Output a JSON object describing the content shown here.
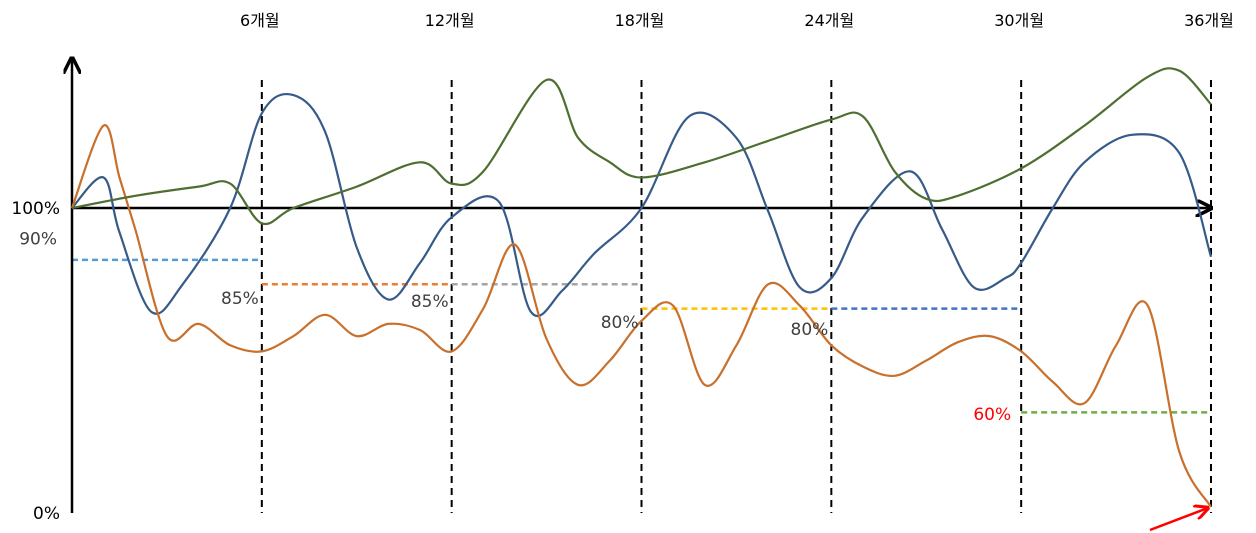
{
  "chart_data": {
    "type": "line",
    "title": "",
    "xlabel": "",
    "ylabel": "",
    "xlim": [
      0,
      36
    ],
    "ylim": [
      0,
      150
    ],
    "grid": false,
    "legend": "none",
    "x_ticks": [
      {
        "x": 6,
        "label": "6개월"
      },
      {
        "x": 12,
        "label": "12개월"
      },
      {
        "x": 18,
        "label": "18개월"
      },
      {
        "x": 24,
        "label": "24개월"
      },
      {
        "x": 30,
        "label": "30개월"
      },
      {
        "x": 36,
        "label": "36개월"
      }
    ],
    "y_ticks": [
      {
        "y": 100,
        "label": "100%"
      },
      {
        "y": 90,
        "label": "90%"
      },
      {
        "y": 0,
        "label": "0%"
      }
    ],
    "series": [
      {
        "color": "#375b89",
        "x": [
          0,
          1,
          1.5,
          2.5,
          3.5,
          5,
          6,
          7,
          8,
          9,
          10,
          11,
          12,
          13.5,
          14.5,
          15.5,
          16.5,
          18,
          19.5,
          21,
          22,
          23,
          24,
          25,
          26.5,
          27.5,
          28.5,
          29.5,
          30,
          31,
          32,
          33.5,
          35,
          36
        ],
        "values": [
          100,
          110,
          92,
          66,
          75,
          100,
          131,
          137,
          125,
          87,
          70,
          82,
          97,
          102,
          66,
          73,
          85,
          100,
          130,
          123,
          99,
          74,
          77,
          97,
          112,
          93,
          74,
          77,
          82,
          100,
          115,
          124,
          118,
          84
        ]
      },
      {
        "color": "#c8702c",
        "x": [
          0,
          1,
          1.5,
          2,
          3,
          4,
          5,
          6,
          7,
          8,
          9,
          10,
          11,
          12,
          13,
          14,
          15,
          16,
          17,
          18,
          19,
          20,
          21,
          22,
          23,
          24,
          25,
          26,
          27,
          28,
          29,
          30,
          31,
          32,
          33,
          34,
          35,
          36
        ],
        "values": [
          100,
          127,
          110,
          93,
          58,
          62,
          55,
          53,
          58,
          65,
          58,
          62,
          60,
          53,
          67,
          88,
          57,
          42,
          50,
          63,
          68,
          42,
          55,
          75,
          68,
          55,
          48,
          45,
          50,
          56,
          58,
          53,
          43,
          36,
          55,
          68,
          20,
          2
        ]
      },
      {
        "color": "#4e6e32",
        "x": [
          0,
          2,
          4,
          5,
          6,
          7,
          9,
          11,
          12,
          13,
          15,
          16,
          17,
          18,
          20,
          22,
          24,
          25,
          26,
          27,
          28,
          30,
          32,
          34,
          35,
          36
        ],
        "values": [
          100,
          104,
          107,
          108,
          95,
          100,
          107,
          115,
          108,
          112,
          142,
          123,
          115,
          110,
          115,
          122,
          129,
          130,
          112,
          103,
          104,
          113,
          127,
          143,
          145,
          134
        ]
      }
    ],
    "thresholds": [
      {
        "label": "90%",
        "y": 83,
        "x_range": [
          0,
          6
        ],
        "color": "#5b9bd5"
      },
      {
        "label": "85%",
        "y": 75,
        "x_range": [
          6,
          12
        ],
        "color": "#ed7d31"
      },
      {
        "label": "85%",
        "y": 75,
        "x_range": [
          12,
          18
        ],
        "color": "#a5a5a5"
      },
      {
        "label": "80%",
        "y": 67,
        "x_range": [
          18,
          24
        ],
        "color": "#ffc000"
      },
      {
        "label": "80%",
        "y": 67,
        "x_range": [
          24,
          30
        ],
        "color": "#4472c4"
      },
      {
        "label": "60%",
        "y": 33,
        "x_range": [
          30,
          36
        ],
        "color": "#70ad47"
      }
    ],
    "threshold_label_colors": {
      "default": "#404040",
      "final": "#ff0000"
    },
    "arrow_color": "#ff0000"
  }
}
